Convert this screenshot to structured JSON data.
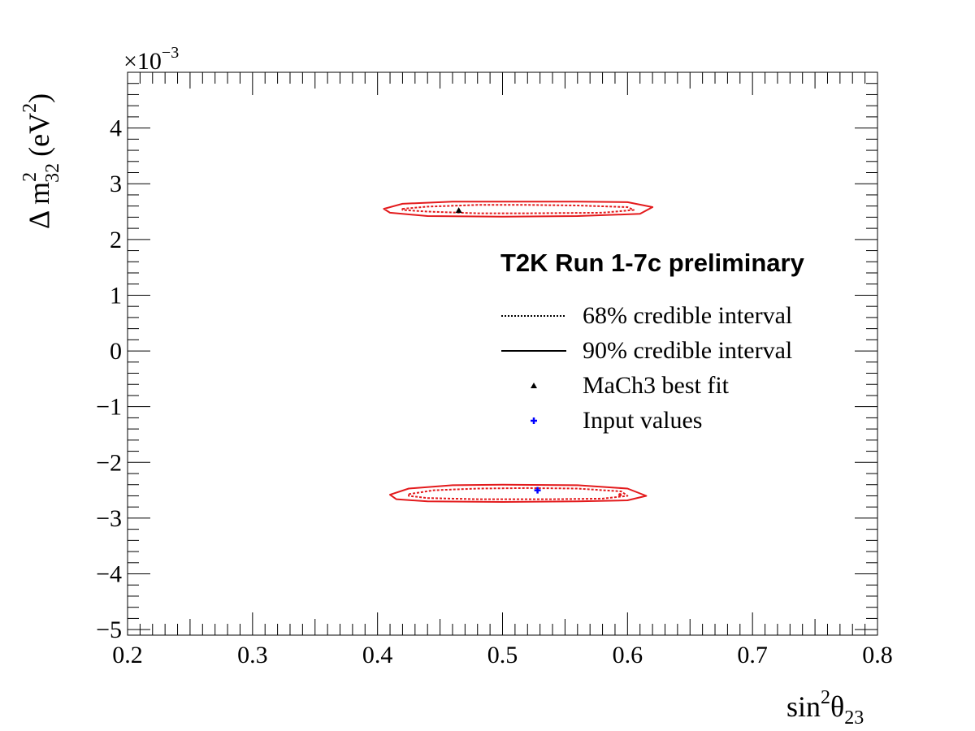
{
  "chart_data": {
    "type": "line",
    "title": "",
    "annotation": "T2K Run 1-7c preliminary",
    "xlabel": {
      "base": "sin",
      "sup": "2",
      "symbol": "θ",
      "sub": "23"
    },
    "ylabel": {
      "prefix": "Δ m",
      "sup": "2",
      "sub": "32",
      "unit_open": "(eV",
      "unit_sup": "2",
      "unit_close": ")"
    },
    "y_exponent": {
      "base": "×10",
      "sup": "−3"
    },
    "xlim": [
      0.2,
      0.8
    ],
    "ylim": [
      -5,
      5
    ],
    "x_ticks": [
      0.2,
      0.3,
      0.4,
      0.5,
      0.6,
      0.7,
      0.8
    ],
    "x_tick_labels": [
      "0.2",
      "0.3",
      "0.4",
      "0.5",
      "0.6",
      "0.7",
      "0.8"
    ],
    "y_ticks": [
      -5,
      -4,
      -3,
      -2,
      -1,
      0,
      1,
      2,
      3,
      4
    ],
    "y_tick_labels": [
      "−5",
      "−4",
      "−3",
      "−2",
      "−1",
      "0",
      "1",
      "2",
      "3",
      "4"
    ],
    "grid": false,
    "legend_position": "right-center",
    "contour_color": "#e31a1c",
    "series": [
      {
        "name": "68% credible interval",
        "style": "dotted",
        "regions": [
          [
            [
              0.42,
              2.55
            ],
            [
              0.44,
              2.59
            ],
            [
              0.48,
              2.62
            ],
            [
              0.52,
              2.62
            ],
            [
              0.56,
              2.61
            ],
            [
              0.6,
              2.58
            ],
            [
              0.605,
              2.53
            ],
            [
              0.58,
              2.48
            ],
            [
              0.52,
              2.47
            ],
            [
              0.48,
              2.47
            ],
            [
              0.44,
              2.5
            ],
            [
              0.42,
              2.53
            ]
          ],
          [
            [
              0.425,
              -2.57
            ],
            [
              0.445,
              -2.5
            ],
            [
              0.48,
              -2.47
            ],
            [
              0.52,
              -2.46
            ],
            [
              0.56,
              -2.47
            ],
            [
              0.595,
              -2.52
            ],
            [
              0.6,
              -2.6
            ],
            [
              0.58,
              -2.65
            ],
            [
              0.54,
              -2.66
            ],
            [
              0.48,
              -2.66
            ],
            [
              0.44,
              -2.64
            ],
            [
              0.425,
              -2.6
            ]
          ]
        ]
      },
      {
        "name": "90% credible interval",
        "style": "solid",
        "regions": [
          [
            [
              0.405,
              2.55
            ],
            [
              0.42,
              2.64
            ],
            [
              0.46,
              2.68
            ],
            [
              0.5,
              2.68
            ],
            [
              0.56,
              2.68
            ],
            [
              0.6,
              2.67
            ],
            [
              0.62,
              2.58
            ],
            [
              0.61,
              2.46
            ],
            [
              0.56,
              2.42
            ],
            [
              0.5,
              2.41
            ],
            [
              0.44,
              2.42
            ],
            [
              0.41,
              2.48
            ]
          ],
          [
            [
              0.41,
              -2.58
            ],
            [
              0.425,
              -2.47
            ],
            [
              0.46,
              -2.41
            ],
            [
              0.5,
              -2.4
            ],
            [
              0.56,
              -2.41
            ],
            [
              0.6,
              -2.47
            ],
            [
              0.615,
              -2.6
            ],
            [
              0.6,
              -2.68
            ],
            [
              0.56,
              -2.7
            ],
            [
              0.5,
              -2.71
            ],
            [
              0.44,
              -2.7
            ],
            [
              0.415,
              -2.66
            ]
          ]
        ]
      }
    ],
    "points": [
      {
        "name": "MaCh3 best fit",
        "marker": "triangle",
        "color": "#000000",
        "x": 0.465,
        "y": 2.52
      },
      {
        "name": "Input values",
        "marker": "cross",
        "color": "#0000ff",
        "x": 0.528,
        "y": -2.5
      },
      {
        "name": "",
        "marker": "point",
        "color": "#e31a1c",
        "x": 0.594,
        "y": -2.58
      }
    ],
    "legend": [
      {
        "label": "68% credible interval",
        "symbol": "dotted-line"
      },
      {
        "label": "90% credible interval",
        "symbol": "solid-line"
      },
      {
        "label": "MaCh3 best fit",
        "symbol": "triangle"
      },
      {
        "label": "Input values",
        "symbol": "cross"
      }
    ]
  }
}
